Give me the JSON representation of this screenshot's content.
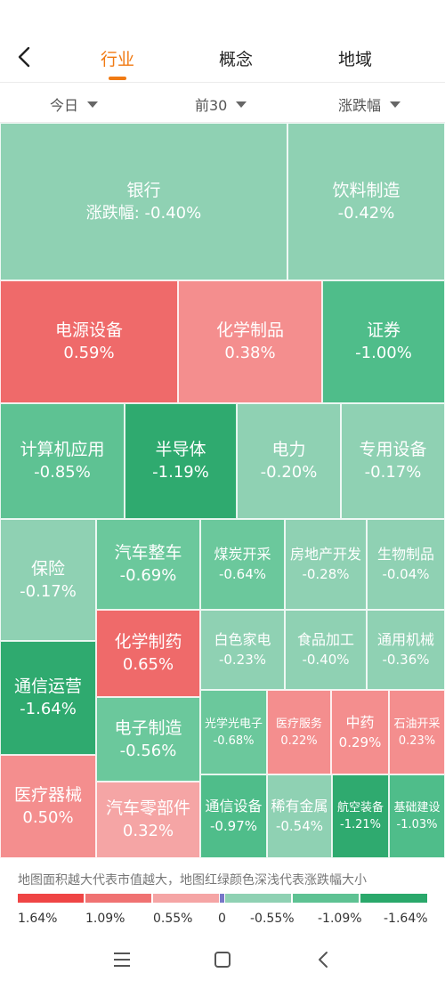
{
  "header": {
    "tabs": [
      {
        "label": "行业",
        "active": true
      },
      {
        "label": "概念",
        "active": false
      },
      {
        "label": "地域",
        "active": false
      }
    ]
  },
  "filters": {
    "period": "今日",
    "range": "前30",
    "metric": "涨跌幅"
  },
  "colors": {
    "accent": "#f07a13",
    "up_strong": "#ef6a6a",
    "up_mid": "#f48e8e",
    "up_light": "#f5a5a5",
    "down_light": "#8fd1b3",
    "down_mid": "#5ec293",
    "down_strong": "#2aa86b"
  },
  "treemap": {
    "cells": [
      {
        "name": "银行",
        "value": "涨跌幅: -0.40%"
      },
      {
        "name": "饮料制造",
        "value": "-0.42%"
      },
      {
        "name": "电源设备",
        "value": "0.59%"
      },
      {
        "name": "化学制品",
        "value": "0.38%"
      },
      {
        "name": "证券",
        "value": "-1.00%"
      },
      {
        "name": "计算机应用",
        "value": "-0.85%"
      },
      {
        "name": "半导体",
        "value": "-1.19%"
      },
      {
        "name": "电力",
        "value": "-0.20%"
      },
      {
        "name": "专用设备",
        "value": "-0.17%"
      },
      {
        "name": "保险",
        "value": "-0.17%"
      },
      {
        "name": "汽车整车",
        "value": "-0.69%"
      },
      {
        "name": "煤炭开采",
        "value": "-0.64%"
      },
      {
        "name": "房地产开发",
        "value": "-0.28%"
      },
      {
        "name": "生物制品",
        "value": "-0.04%"
      },
      {
        "name": "化学制药",
        "value": "0.65%"
      },
      {
        "name": "白色家电",
        "value": "-0.23%"
      },
      {
        "name": "食品加工",
        "value": "-0.40%"
      },
      {
        "name": "通用机械",
        "value": "-0.36%"
      },
      {
        "name": "通信运营",
        "value": "-1.64%"
      },
      {
        "name": "电子制造",
        "value": "-0.56%"
      },
      {
        "name": "光学光电子",
        "value": "-0.68%"
      },
      {
        "name": "医疗服务",
        "value": "0.22%"
      },
      {
        "name": "中药",
        "value": "0.29%"
      },
      {
        "name": "石油开采",
        "value": "0.23%"
      },
      {
        "name": "医疗器械",
        "value": "0.50%"
      },
      {
        "name": "汽车零部件",
        "value": "0.32%"
      },
      {
        "name": "通信设备",
        "value": "-0.97%"
      },
      {
        "name": "稀有金属",
        "value": "-0.54%"
      },
      {
        "name": "航空装备",
        "value": "-1.21%"
      },
      {
        "name": "基础建设",
        "value": "-1.03%"
      }
    ]
  },
  "legend": {
    "note": "地图面积越大代表市值越大，地图红绿颜色深浅代表涨跌幅大小",
    "labels": [
      "1.64%",
      "1.09%",
      "0.55%",
      "0",
      "-0.55%",
      "-1.09%",
      "-1.64%"
    ]
  }
}
